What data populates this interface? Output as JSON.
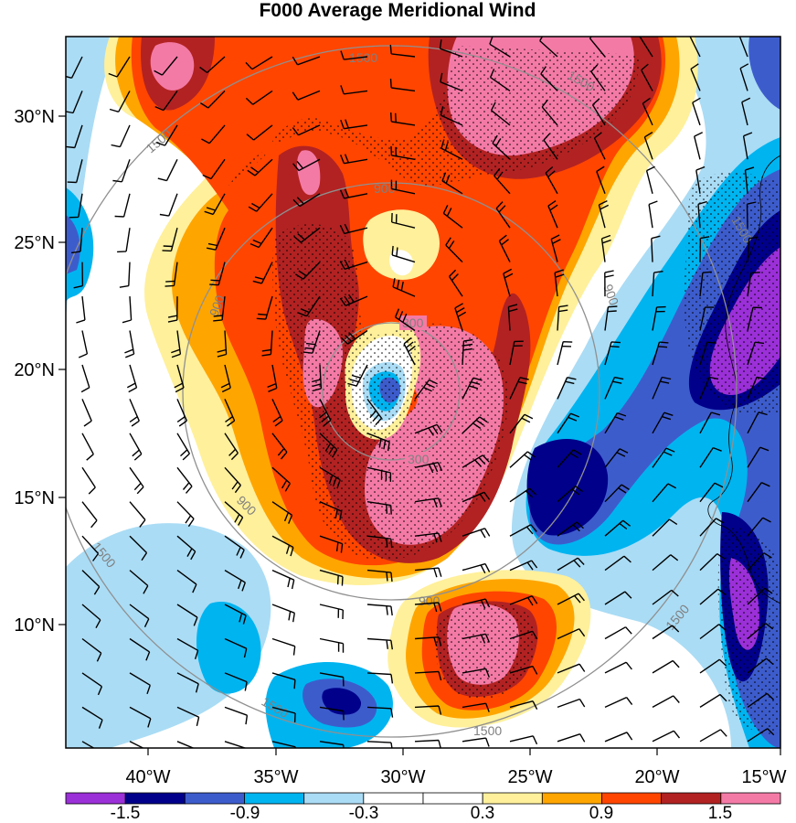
{
  "title": "F000 Average Meridional Wind",
  "lat_labels": [
    "30°N",
    "25°N",
    "20°N",
    "15°N",
    "10°N"
  ],
  "lon_labels": [
    "40°W",
    "35°W",
    "30°W",
    "25°W",
    "20°W",
    "15°W"
  ],
  "colorbar": {
    "labels": [
      "-1.5",
      "-0.9",
      "-0.3",
      "0.3",
      "0.9",
      "1.5"
    ],
    "colors": [
      "#9b30d8",
      "#00008b",
      "#3d5ccc",
      "#00b4f0",
      "#aadcf5",
      "#ffffff",
      "#ffffff",
      "#fff09b",
      "#ffa500",
      "#ff4500",
      "#b22222",
      "#f47aa6"
    ]
  },
  "ring_labels": [
    "300",
    "900",
    "1500"
  ],
  "colors": {
    "pink": "#f47aa6",
    "darkred": "#b22222",
    "redorange": "#ff4500",
    "orange": "#ffa500",
    "yellow": "#fff09b",
    "lightblue": "#aadcf5",
    "cyan": "#00b4f0",
    "medblue": "#3d5ccc",
    "navy": "#00008b",
    "purple": "#9b30d8",
    "ring": "#909090"
  }
}
